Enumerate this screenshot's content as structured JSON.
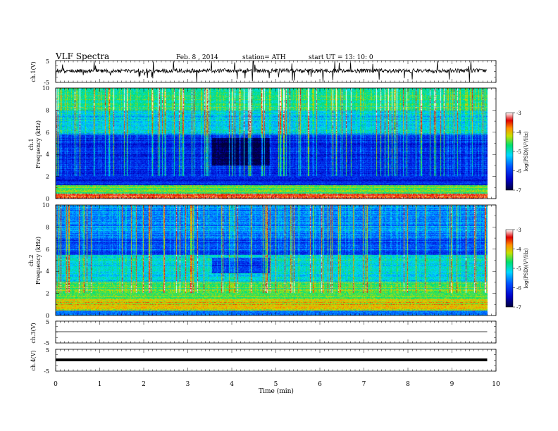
{
  "header": {
    "title": "VLF Spectra",
    "date": "Feb. 8 , 2014",
    "station": "station= ATH",
    "start": "start  UT =   13: 10: 0"
  },
  "chart_data": [
    {
      "type": "line",
      "panel": "ch1-waveform",
      "ylabel": "ch.1(V)",
      "yticks": [
        "5",
        "-5"
      ],
      "ylim": [
        -5,
        5
      ],
      "xlim": [
        0,
        10
      ],
      "x_range_of_data": [
        0,
        9.8
      ],
      "series": [
        {
          "values_description_free": true,
          "baseline": 0,
          "noise_amplitude": 1,
          "spike_amplitude": 3
        }
      ]
    },
    {
      "type": "heatmap",
      "panel": "ch1-spectrogram",
      "ylabel": "ch.1\nFrequency (kHz)",
      "ylabel_lines": [
        "ch.1",
        "Frequency  (kHz)"
      ],
      "yticks": [
        "0",
        "2",
        "4",
        "6",
        "8",
        "10"
      ],
      "ylim": [
        0,
        10
      ],
      "xlim": [
        0,
        10
      ],
      "colorbar": {
        "label": "log(PSD)(V²/Hz)",
        "ticks": [
          "-3",
          "-4",
          "-5",
          "-6",
          "-7"
        ],
        "range": [
          -7,
          -3
        ]
      },
      "quiet_interval_min": [
        3.55,
        4.85
      ],
      "quiet_band_khz": [
        3,
        5.5
      ]
    },
    {
      "type": "heatmap",
      "panel": "ch2-spectrogram",
      "ylabel": "ch.2\nFrequency (kHz)",
      "ylabel_lines": [
        "ch.2",
        "Frequency  (kHz)"
      ],
      "yticks": [
        "0",
        "2",
        "4",
        "6",
        "8",
        "10"
      ],
      "ylim": [
        0,
        10
      ],
      "xlim": [
        0,
        10
      ],
      "colorbar": {
        "label": "log(PSD)(V²/Hz)",
        "ticks": [
          "-3",
          "-4",
          "-5",
          "-6",
          "-7"
        ],
        "range": [
          -7,
          -3
        ]
      },
      "quiet_interval_min": [
        3.55,
        4.85
      ],
      "quiet_band_khz": [
        3.8,
        5.2
      ]
    },
    {
      "type": "line",
      "panel": "ch3-waveform",
      "ylabel": "ch.3(V)",
      "yticks": [
        "5",
        "-5"
      ],
      "ylim": [
        -5,
        5
      ],
      "xlim": [
        0,
        10
      ],
      "series": [
        {
          "baseline": 0
        }
      ]
    },
    {
      "type": "line",
      "panel": "ch4-waveform",
      "ylabel": "ch.4(V)",
      "yticks": [
        "5",
        "-5"
      ],
      "ylim": [
        -5,
        5
      ],
      "xlim": [
        0,
        10
      ],
      "series": [
        {
          "baseline": 0
        }
      ]
    }
  ],
  "xaxis": {
    "label": "Time  (min)",
    "ticks": [
      "0",
      "1",
      "2",
      "3",
      "4",
      "5",
      "6",
      "7",
      "8",
      "9",
      "10"
    ]
  }
}
